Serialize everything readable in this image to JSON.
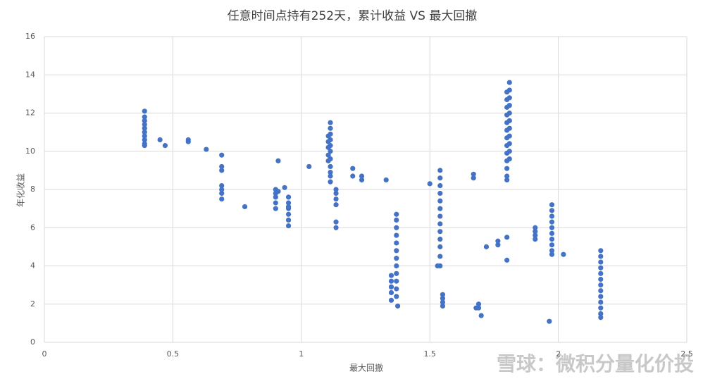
{
  "chart_data": {
    "type": "scatter",
    "title": "任意时间点持有252天，累计收益 VS 最大回撤",
    "x_label": "最大回撤",
    "y_label": "年化收益",
    "watermark": "雪球：微积分量化价投",
    "xlim": [
      0,
      2.5
    ],
    "xticks": [
      0,
      0.5,
      1,
      1.5,
      2,
      2.5
    ],
    "ylim": [
      0,
      16
    ],
    "yticks": [
      0,
      2,
      4,
      6,
      8,
      10,
      12,
      14,
      16
    ],
    "grid": true,
    "color": "#4472c4",
    "x": [
      0.39,
      0.39,
      0.39,
      0.39,
      0.39,
      0.39,
      0.39,
      0.39,
      0.39,
      0.39,
      0.45,
      0.47,
      0.56,
      0.56,
      0.63,
      0.69,
      0.69,
      0.69,
      0.69,
      0.69,
      0.69,
      0.69,
      0.78,
      0.9,
      0.9,
      0.9,
      0.9,
      0.9,
      0.91,
      0.91,
      0.935,
      0.95,
      0.95,
      0.95,
      0.95,
      0.95,
      0.95,
      0.95,
      1.03,
      1.105,
      1.105,
      1.105,
      1.105,
      1.105,
      1.113,
      1.113,
      1.113,
      1.113,
      1.113,
      1.113,
      1.113,
      1.113,
      1.113,
      1.113,
      1.113,
      1.135,
      1.135,
      1.135,
      1.135,
      1.135,
      1.135,
      1.2,
      1.2,
      1.235,
      1.235,
      1.33,
      1.35,
      1.35,
      1.35,
      1.35,
      1.35,
      1.37,
      1.37,
      1.37,
      1.37,
      1.37,
      1.37,
      1.37,
      1.37,
      1.37,
      1.37,
      1.37,
      1.37,
      1.375,
      1.5,
      1.54,
      1.54,
      1.54,
      1.54,
      1.54,
      1.54,
      1.54,
      1.54,
      1.54,
      1.54,
      1.54,
      1.54,
      1.54,
      1.53,
      1.55,
      1.55,
      1.55,
      1.55,
      1.67,
      1.67,
      1.68,
      1.69,
      1.69,
      1.7,
      1.72,
      1.765,
      1.765,
      1.8,
      1.8,
      1.8,
      1.8,
      1.8,
      1.8,
      1.8,
      1.8,
      1.8,
      1.8,
      1.8,
      1.8,
      1.8,
      1.8,
      1.8,
      1.81,
      1.81,
      1.81,
      1.81,
      1.81,
      1.81,
      1.81,
      1.81,
      1.81,
      1.81,
      1.81,
      1.91,
      1.91,
      1.91,
      1.91,
      1.975,
      1.975,
      1.975,
      1.975,
      1.975,
      1.975,
      1.975,
      1.975,
      1.975,
      1.975,
      1.965,
      2.02,
      2.165,
      2.165,
      2.165,
      2.165,
      2.165,
      2.165,
      2.165,
      2.165,
      2.165,
      2.165,
      2.165,
      2.165,
      2.165
    ],
    "values": [
      12.1,
      11.8,
      11.6,
      11.4,
      11.2,
      11.0,
      10.8,
      10.6,
      10.4,
      10.3,
      10.6,
      10.3,
      10.5,
      10.6,
      10.1,
      9.8,
      9.2,
      9.0,
      8.2,
      8.0,
      7.8,
      7.5,
      7.1,
      8.0,
      7.8,
      7.6,
      7.3,
      7.0,
      9.5,
      7.9,
      8.1,
      7.6,
      7.3,
      7.1,
      7.0,
      6.7,
      6.4,
      6.1,
      9.2,
      10.8,
      10.5,
      10.2,
      9.8,
      9.5,
      11.5,
      11.2,
      10.9,
      10.6,
      10.3,
      10.0,
      9.6,
      9.2,
      8.9,
      8.7,
      8.4,
      8.0,
      7.8,
      7.5,
      7.2,
      6.3,
      6.0,
      9.1,
      8.7,
      8.7,
      8.5,
      8.5,
      3.5,
      3.2,
      2.9,
      2.6,
      2.2,
      6.7,
      6.4,
      6.0,
      5.6,
      5.2,
      4.8,
      4.4,
      4.0,
      3.6,
      3.2,
      2.8,
      2.4,
      1.9,
      8.3,
      9.0,
      8.6,
      8.2,
      7.8,
      7.4,
      7.0,
      6.6,
      6.2,
      5.8,
      5.4,
      5.0,
      4.5,
      4.0,
      4.0,
      2.5,
      2.3,
      2.1,
      1.9,
      8.8,
      8.6,
      1.8,
      2.0,
      1.8,
      1.4,
      5.0,
      5.3,
      5.1,
      5.5,
      4.3,
      13.1,
      12.7,
      12.3,
      11.9,
      11.5,
      11.1,
      10.7,
      10.3,
      9.9,
      9.5,
      9.1,
      8.7,
      8.5,
      13.6,
      13.2,
      12.8,
      12.4,
      12.0,
      11.6,
      11.2,
      10.8,
      10.4,
      10.0,
      9.6,
      6.0,
      5.8,
      5.6,
      5.4,
      7.2,
      6.9,
      6.6,
      6.3,
      6.0,
      5.7,
      5.4,
      5.1,
      4.8,
      4.6,
      1.1,
      4.6,
      4.8,
      4.5,
      4.2,
      3.9,
      3.6,
      3.3,
      3.0,
      2.7,
      2.4,
      2.1,
      1.8,
      1.5,
      1.3
    ]
  }
}
